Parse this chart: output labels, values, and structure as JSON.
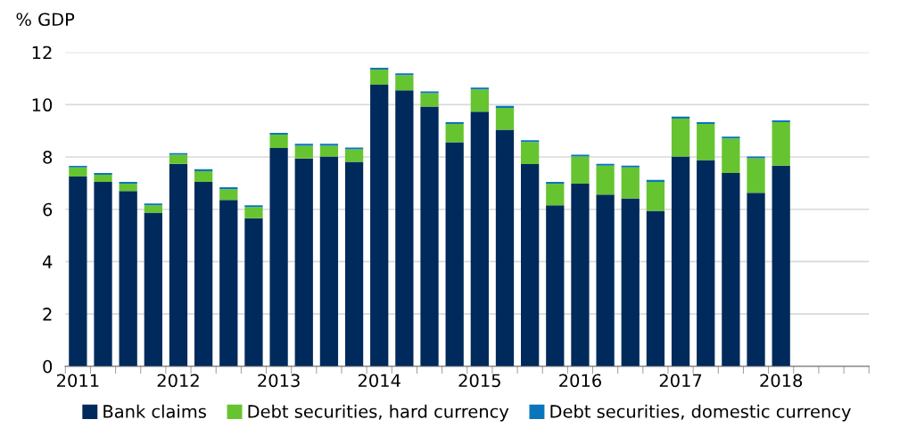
{
  "chart_data": {
    "type": "bar",
    "stacked": true,
    "ylabel": "% GDP",
    "categories": [
      "2011",
      null,
      null,
      null,
      "2012",
      null,
      null,
      null,
      "2013",
      null,
      null,
      null,
      "2014",
      null,
      null,
      null,
      "2015",
      null,
      null,
      null,
      "2016",
      null,
      null,
      null,
      "2017",
      null,
      null,
      null,
      "2018",
      null,
      null,
      null
    ],
    "series": [
      {
        "name": "Bank claims",
        "color": "#002a5c",
        "values": [
          7.25,
          7.05,
          6.7,
          5.87,
          7.74,
          7.05,
          6.36,
          5.66,
          8.34,
          7.94,
          8.02,
          7.81,
          10.76,
          10.55,
          9.93,
          8.56,
          9.73,
          9.04,
          7.73,
          6.15,
          6.98,
          6.56,
          6.42,
          5.94,
          8.02,
          7.88,
          7.39,
          6.63,
          7.67,
          null,
          null,
          null
        ]
      },
      {
        "name": "Debt securities, hard currency",
        "color": "#66c430",
        "values": [
          0.35,
          0.27,
          0.28,
          0.28,
          0.35,
          0.41,
          0.41,
          0.42,
          0.51,
          0.49,
          0.41,
          0.48,
          0.58,
          0.58,
          0.51,
          0.7,
          0.85,
          0.84,
          0.84,
          0.83,
          1.04,
          1.11,
          1.18,
          1.11,
          1.45,
          1.38,
          1.32,
          1.32,
          1.66,
          null,
          null,
          null
        ]
      },
      {
        "name": "Debt securities, domestic currency",
        "color": "#0a75bc",
        "values": [
          0.06,
          0.07,
          0.07,
          0.07,
          0.06,
          0.07,
          0.07,
          0.07,
          0.07,
          0.07,
          0.07,
          0.07,
          0.07,
          0.07,
          0.07,
          0.07,
          0.07,
          0.07,
          0.07,
          0.07,
          0.07,
          0.07,
          0.07,
          0.07,
          0.07,
          0.07,
          0.07,
          0.07,
          0.07,
          null,
          null,
          null
        ]
      }
    ],
    "ylim": [
      0,
      12
    ],
    "yticks": [
      0,
      2,
      4,
      6,
      8,
      10,
      12
    ],
    "grid": "y",
    "legend": "bottom"
  }
}
